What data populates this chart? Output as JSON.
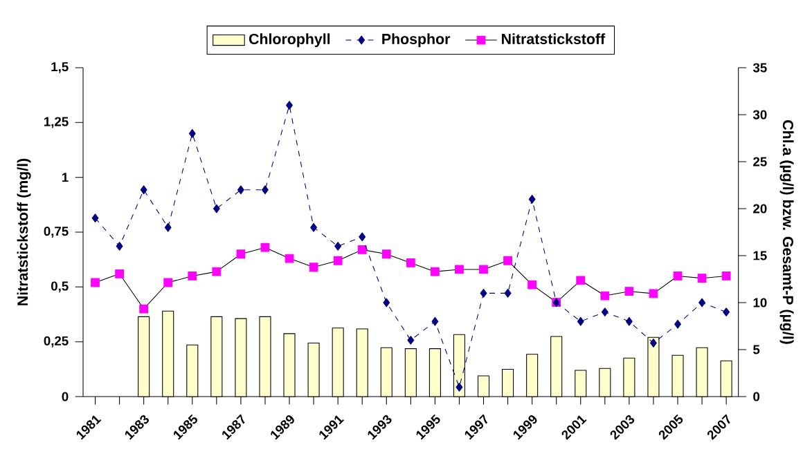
{
  "chart_data": {
    "type": "line",
    "categories": [
      "1981",
      null,
      "1983",
      null,
      "1985",
      null,
      "1987",
      null,
      "1989",
      null,
      "1991",
      null,
      "1993",
      null,
      "1995",
      null,
      "1997",
      null,
      "1999",
      null,
      "2001",
      null,
      "2003",
      null,
      "2005",
      null,
      "2007"
    ],
    "ylabel": "Nitratstickstoff (mg/l)",
    "y2label": "Chl.a (µg/l) bzw. Gesamt-P (µg/l)",
    "ylim": [
      0,
      1.5
    ],
    "yticks": [
      0,
      {
        "value": 0.25,
        "label": "0,25"
      },
      {
        "value": 0.5,
        "label": "0,5"
      },
      {
        "value": 0.75,
        "label": "0,75"
      },
      1,
      {
        "value": 1.25,
        "label": "1,25"
      },
      {
        "value": 1.5,
        "label": "1,5"
      }
    ],
    "y2lim": [
      0,
      35
    ],
    "y2ticks": [
      0,
      5,
      10,
      15,
      20,
      25,
      30,
      35
    ],
    "legend": "top",
    "grid": false,
    "series": [
      {
        "name": "Chlorophyll",
        "type": "bar",
        "axis": "y2",
        "color": "#ffffcc",
        "values": [
          null,
          null,
          8.5,
          9.1,
          5.5,
          8.5,
          8.3,
          8.5,
          6.7,
          5.7,
          7.3,
          7.2,
          5.2,
          5.1,
          5.1,
          6.6,
          2.2,
          2.9,
          4.5,
          6.4,
          2.8,
          3.0,
          4.1,
          6.3,
          4.4,
          5.2,
          3.8
        ]
      },
      {
        "name": "Phosphor",
        "axis": "y2",
        "color": "#000080",
        "marker": "diamond",
        "line_style": "dashed",
        "values": [
          19,
          16,
          22,
          18,
          28,
          20,
          22,
          22,
          31,
          18,
          16,
          17,
          10,
          6,
          8,
          1,
          11,
          11,
          21,
          10,
          8,
          9,
          8,
          5.7,
          7.7,
          10,
          9
        ]
      },
      {
        "name": "Nitratstickstoff",
        "axis": "y",
        "color": "#ff00ff",
        "marker": "square",
        "line_style": "solid",
        "values": [
          0.52,
          0.56,
          0.4,
          0.52,
          0.55,
          0.57,
          0.65,
          0.68,
          0.63,
          0.59,
          0.62,
          0.67,
          0.65,
          0.61,
          0.57,
          0.58,
          0.58,
          0.62,
          0.51,
          0.43,
          0.53,
          0.46,
          0.48,
          0.47,
          0.55,
          0.54,
          0.55
        ]
      }
    ]
  }
}
